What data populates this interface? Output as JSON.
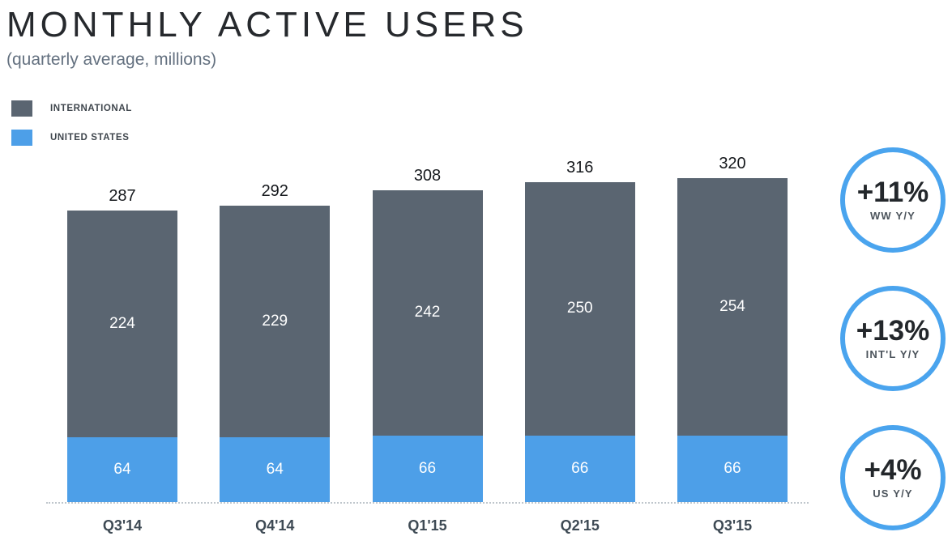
{
  "header": {
    "title": "MONTHLY ACTIVE USERS",
    "subtitle": "(quarterly average, millions)"
  },
  "legend": {
    "items": [
      {
        "label": "INTERNATIONAL",
        "color": "#5a6571"
      },
      {
        "label": "UNITED STATES",
        "color": "#4d9fe8"
      }
    ]
  },
  "chart_data": {
    "type": "bar",
    "stacked": true,
    "title": "MONTHLY ACTIVE USERS",
    "subtitle": "(quarterly average, millions)",
    "unit": "millions",
    "categories": [
      "Q3'14",
      "Q4'14",
      "Q1'15",
      "Q2'15",
      "Q3'15"
    ],
    "series": [
      {
        "name": "INTERNATIONAL",
        "color": "#5a6571",
        "values": [
          224,
          229,
          242,
          250,
          254
        ]
      },
      {
        "name": "UNITED STATES",
        "color": "#4d9fe8",
        "values": [
          64,
          64,
          66,
          66,
          66
        ]
      }
    ],
    "totals": [
      287,
      292,
      308,
      316,
      320
    ],
    "value_labels": "inside-white",
    "total_labels": "above-bars",
    "baseline_style": "dotted",
    "grid": false,
    "legend_position": "top-left",
    "ylim": [
      0,
      346
    ]
  },
  "badges": [
    {
      "value": "+11%",
      "label": "WW Y/Y"
    },
    {
      "value": "+13%",
      "label": "INT'L Y/Y"
    },
    {
      "value": "+4%",
      "label": "US Y/Y"
    }
  ],
  "colors": {
    "international": "#5a6571",
    "united_states": "#4d9fe8",
    "badge_ring": "#4aa4ee",
    "title_text": "#26292d",
    "subtitle_text": "#647180",
    "axis_label_text": "#3e4a54",
    "baseline": "#bfc6cc"
  }
}
